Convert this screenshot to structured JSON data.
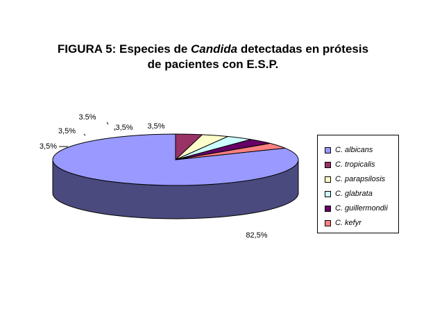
{
  "chart_data": {
    "type": "pie",
    "title_parts": {
      "line1_prefix": "FIGURA 5: Especies de ",
      "line1_italic": "Candida",
      "line1_suffix": " detectadas en prótesis",
      "line2": "de pacientes con E.S.P."
    },
    "categories": [
      "C. albicans",
      "C. tropicalis",
      "C. parapsilosis",
      "C. glabrata",
      "C. guillermondii",
      "C. kefyr"
    ],
    "values": [
      82.5,
      3.5,
      3.5,
      3.5,
      3.5,
      3.5
    ],
    "data_labels": [
      "82,5%",
      "3,5%",
      "3,5%",
      "3.5%",
      "3,5%",
      "3,5%"
    ],
    "colors": [
      "#9999ff",
      "#993366",
      "#ffffcc",
      "#ccffff",
      "#660066",
      "#ff8080"
    ],
    "side_colors": [
      "#4a4a7e",
      "#5c1f3e",
      "#b3b38f",
      "#8fb3b3",
      "#3d003d",
      "#b35a5a"
    ],
    "legend_position": "right",
    "three_d": true
  }
}
